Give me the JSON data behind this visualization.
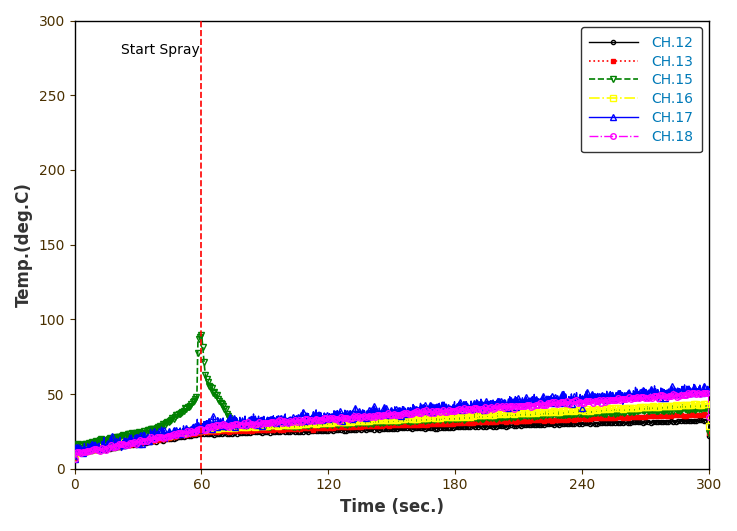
{
  "xlabel": "Time (sec.)",
  "ylabel": "Temp.(deg.C)",
  "xlim": [
    0,
    300
  ],
  "ylim": [
    0,
    300
  ],
  "xticks": [
    0,
    60,
    120,
    180,
    240,
    300
  ],
  "yticks": [
    0,
    50,
    100,
    150,
    200,
    250,
    300
  ],
  "spray_x": 60,
  "spray_label": "Start Spray",
  "spray_label_fontsize": 10,
  "channels": [
    {
      "name": "CH.12",
      "color": "black",
      "linestyle": "-",
      "marker": "o",
      "markerfacecolor": "none",
      "markersize": 3,
      "linewidth": 1.0,
      "markevery": 12
    },
    {
      "name": "CH.13",
      "color": "red",
      "linestyle": ":",
      "marker": "s",
      "markerfacecolor": "red",
      "markersize": 3,
      "linewidth": 1.2,
      "markevery": 12
    },
    {
      "name": "CH.15",
      "color": "green",
      "linestyle": "--",
      "marker": "v",
      "markerfacecolor": "none",
      "markersize": 4,
      "linewidth": 1.2,
      "markevery": 6
    },
    {
      "name": "CH.16",
      "color": "yellow",
      "linestyle": "-.",
      "marker": "s",
      "markerfacecolor": "none",
      "markersize": 4,
      "linewidth": 1.2,
      "markevery": 12
    },
    {
      "name": "CH.17",
      "color": "blue",
      "linestyle": "-",
      "marker": "^",
      "markerfacecolor": "none",
      "markersize": 4,
      "linewidth": 1.0,
      "markevery": 8
    },
    {
      "name": "CH.18",
      "color": "magenta",
      "linestyle": "-.",
      "marker": "o",
      "markerfacecolor": "none",
      "markersize": 4,
      "linewidth": 1.0,
      "markevery": 10
    }
  ],
  "legend_fontsize": 10,
  "axis_label_fontsize": 12,
  "tick_fontsize": 10,
  "legend_text_color": "#007ab8"
}
